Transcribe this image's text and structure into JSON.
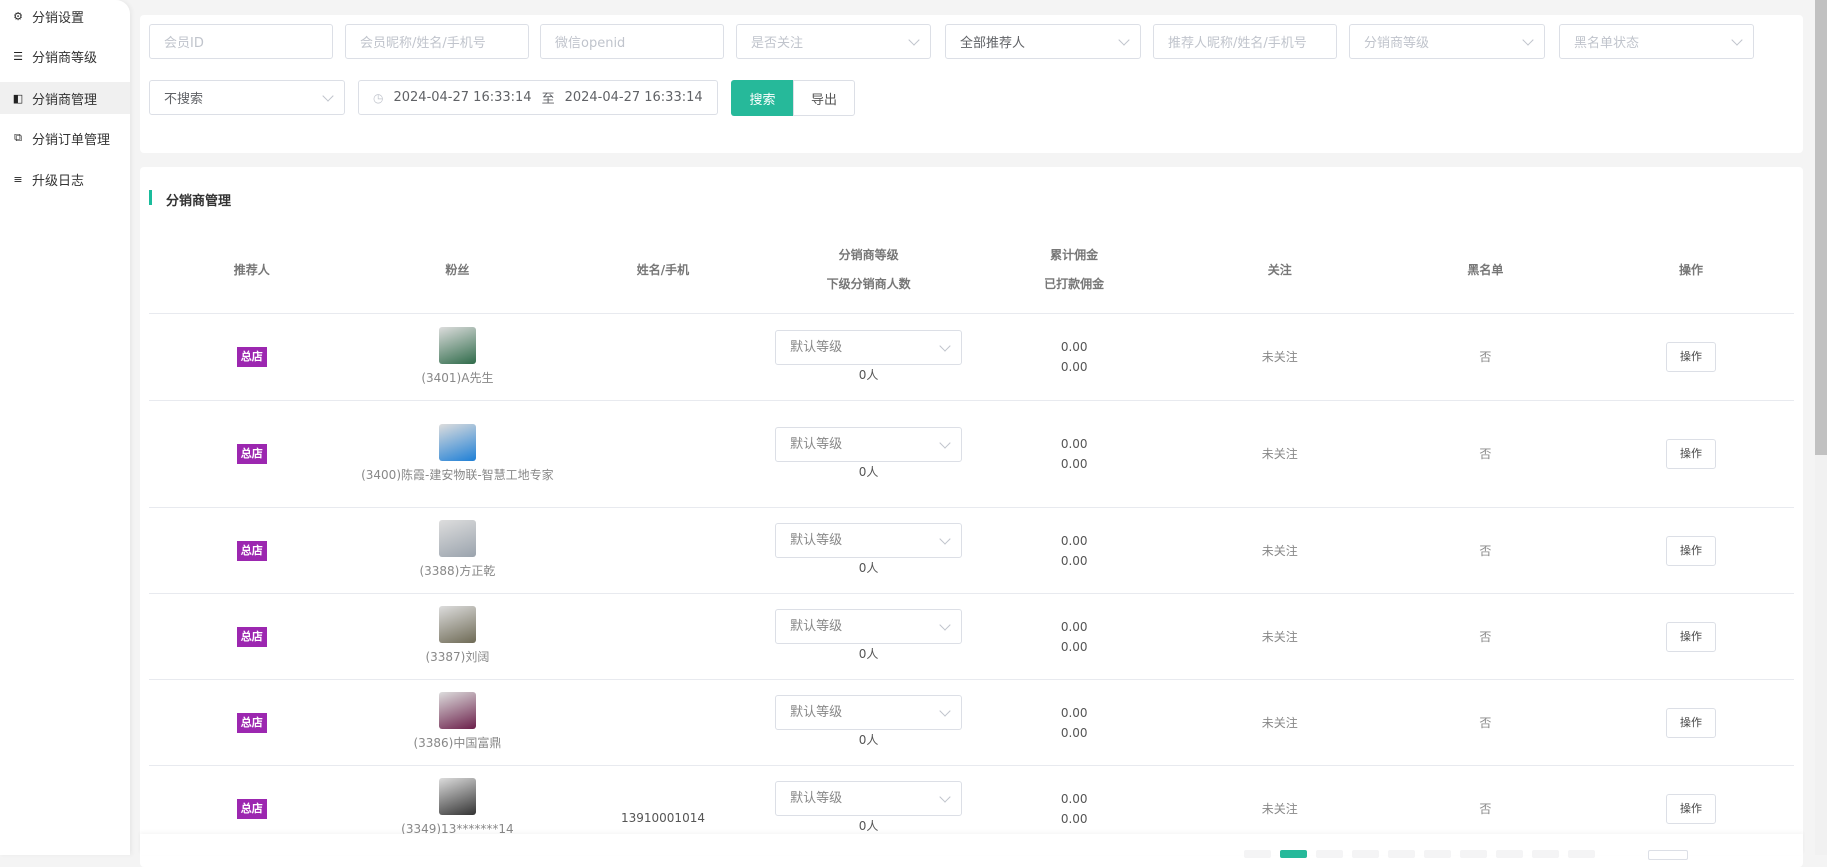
{
  "sidebar": {
    "items": [
      {
        "label": "分销设置",
        "icon": "gear-icon",
        "glyph": "⚙"
      },
      {
        "label": "分销商等级",
        "icon": "sliders-icon",
        "glyph": "☰"
      },
      {
        "label": "分销商管理",
        "icon": "share-icon",
        "glyph": "◧",
        "active": true
      },
      {
        "label": "分销订单管理",
        "icon": "copy-icon",
        "glyph": "⧉"
      },
      {
        "label": "升级日志",
        "icon": "list-icon",
        "glyph": "≡"
      }
    ]
  },
  "filters": {
    "member_id": "会员ID",
    "member_name": "会员昵称/姓名/手机号",
    "openid": "微信openid",
    "follow": "是否关注",
    "referrer": "全部推荐人",
    "referrer_name": "推荐人昵称/姓名/手机号",
    "level": "分销商等级",
    "blacklist": "黑名单状态",
    "time_mode": "不搜索",
    "date_start": "2024-04-27 16:33:14",
    "date_sep": "至",
    "date_end": "2024-04-27 16:33:14",
    "search_label": "搜索",
    "export_label": "导出"
  },
  "section_title": "分销商管理",
  "table": {
    "headers": [
      [
        "推荐人"
      ],
      [
        "粉丝"
      ],
      [
        "姓名/手机"
      ],
      [
        "分销商等级",
        "下级分销商人数"
      ],
      [
        "累计佣金",
        "已打款佣金"
      ],
      [
        "关注"
      ],
      [
        "黑名单"
      ],
      [
        "操作"
      ]
    ],
    "rows": [
      {
        "referrer": "总店",
        "fan": "(3401)A先生",
        "name_phone": "",
        "level": "默认等级",
        "sub_count": "0人",
        "total": "0.00",
        "paid": "0.00",
        "follow": "未关注",
        "blacklist": "否",
        "action": "操作",
        "avatar_color": "#2f6b4a"
      },
      {
        "referrer": "总店",
        "fan": "(3400)陈霞-建安物联-智慧工地专家",
        "name_phone": "",
        "level": "默认等级",
        "sub_count": "0人",
        "total": "0.00",
        "paid": "0.00",
        "follow": "未关注",
        "blacklist": "否",
        "action": "操作",
        "avatar_color": "#1e7fd6"
      },
      {
        "referrer": "总店",
        "fan": "(3388)方正乾",
        "name_phone": "",
        "level": "默认等级",
        "sub_count": "0人",
        "total": "0.00",
        "paid": "0.00",
        "follow": "未关注",
        "blacklist": "否",
        "action": "操作",
        "avatar_color": "#9aa3ad"
      },
      {
        "referrer": "总店",
        "fan": "(3387)刘阔",
        "name_phone": "",
        "level": "默认等级",
        "sub_count": "0人",
        "total": "0.00",
        "paid": "0.00",
        "follow": "未关注",
        "blacklist": "否",
        "action": "操作",
        "avatar_color": "#6e6a55"
      },
      {
        "referrer": "总店",
        "fan": "(3386)中国富鼎",
        "name_phone": "",
        "level": "默认等级",
        "sub_count": "0人",
        "total": "0.00",
        "paid": "0.00",
        "follow": "未关注",
        "blacklist": "否",
        "action": "操作",
        "avatar_color": "#6b1f4a"
      },
      {
        "referrer": "总店",
        "fan": "(3349)13*******14",
        "name_phone": "13910001014",
        "level": "默认等级",
        "sub_count": "0人",
        "total": "0.00",
        "paid": "0.00",
        "follow": "未关注",
        "blacklist": "否",
        "action": "操作",
        "avatar_color": "#333333"
      }
    ]
  },
  "pagination": {
    "active_page_index": 1,
    "page_count_visible": 10
  },
  "colors": {
    "accent": "#26b99a",
    "badge": "#9c27b0"
  }
}
